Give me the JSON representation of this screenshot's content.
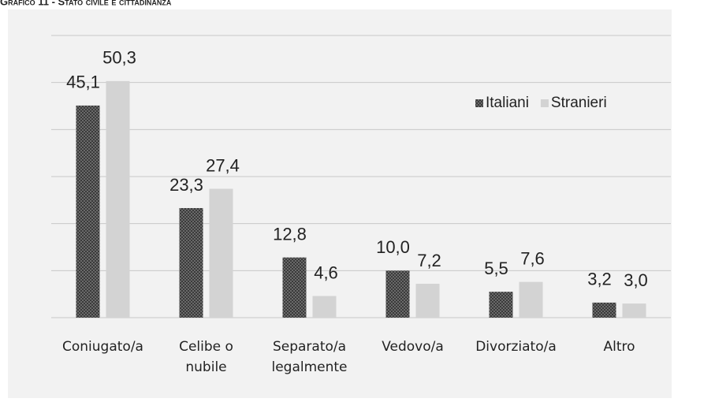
{
  "chart_data": {
    "type": "bar",
    "title": "Grafico 11 - Stato civile e cittadinanza",
    "categories": [
      "Coniugato/a",
      "Celibe o nubile",
      "Separato/a legalmente",
      "Vedovo/a",
      "Divorziato/a",
      "Altro"
    ],
    "series": [
      {
        "name": "Italiani",
        "color": "#4a4a4a",
        "values": [
          45.1,
          23.3,
          12.8,
          10.0,
          5.5,
          3.2
        ],
        "value_labels": [
          "45,1",
          "23,3",
          "12,8",
          "10,0",
          "5,5",
          "3,2"
        ]
      },
      {
        "name": "Stranieri",
        "color": "#d3d3d3",
        "values": [
          50.3,
          27.4,
          4.6,
          7.2,
          7.6,
          3.0
        ],
        "value_labels": [
          "50,3",
          "27,4",
          "4,6",
          "7,2",
          "7,6",
          "3,0"
        ]
      }
    ],
    "ylim": [
      0,
      60
    ],
    "yticks": [
      0,
      10,
      20,
      30,
      40,
      50,
      60
    ],
    "grid": true,
    "legend": "top-right"
  }
}
